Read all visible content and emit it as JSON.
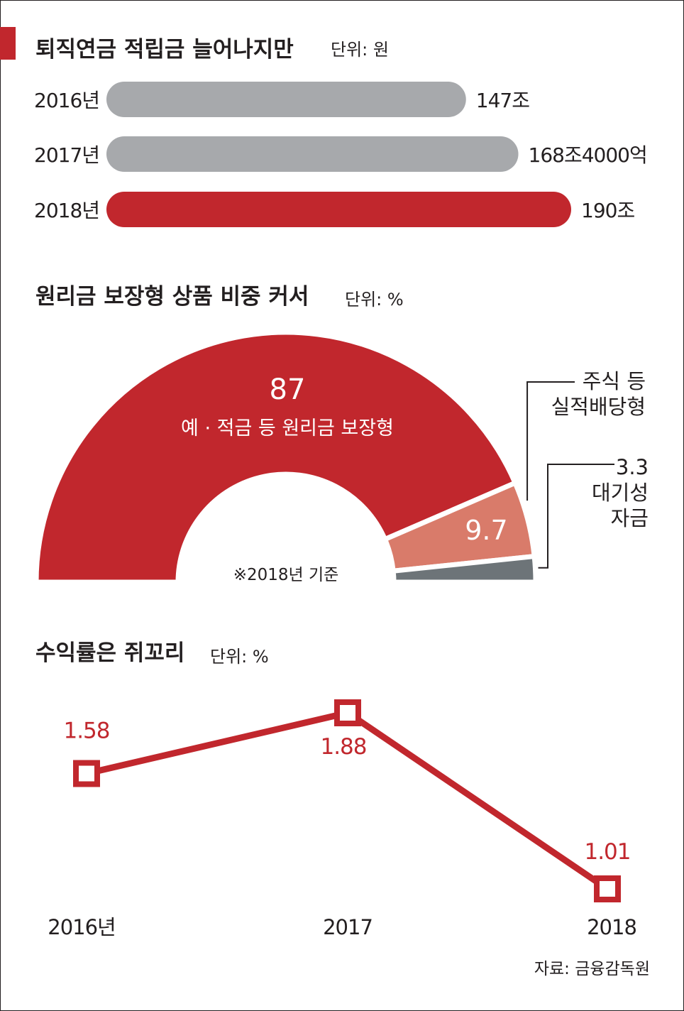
{
  "colors": {
    "accent": "#c1272d",
    "gray_bar": "#a7a9ac",
    "salmon": "#d97b6a",
    "slate": "#6d7478",
    "text": "#231f20"
  },
  "section1": {
    "title": "퇴직연금 적립금 늘어나지만",
    "unit": "단위: 원"
  },
  "section2": {
    "title": "원리금 보장형 상품 비중 커서",
    "unit": "단위: %",
    "footnote": "※2018년 기준"
  },
  "section3": {
    "title": "수익률은 쥐꼬리",
    "unit": "단위: %"
  },
  "source": "자료: 금융감독원",
  "chart_data": [
    {
      "type": "bar",
      "orientation": "horizontal",
      "title": "퇴직연금 적립금 늘어나지만",
      "unit": "원",
      "categories": [
        "2016년",
        "2017년",
        "2018년"
      ],
      "values": [
        147,
        168.4,
        190
      ],
      "value_unit": "조",
      "labels": [
        "147조",
        "168조4000억",
        "190조"
      ],
      "highlight": [
        false,
        false,
        true
      ]
    },
    {
      "type": "pie",
      "variant": "half-donut",
      "title": "원리금 보장형 상품 비중 커서",
      "unit": "%",
      "slices": [
        {
          "value": 87,
          "value_label": "87",
          "label": "예 · 적금 등 원리금 보장형",
          "color": "#c1272d"
        },
        {
          "value": 9.7,
          "value_label": "9.7",
          "label": "주식 등\n실적배당형",
          "label_lines": [
            "주식 등",
            "실적배당형"
          ],
          "color": "#d97b6a"
        },
        {
          "value": 3.3,
          "value_label": "3.3",
          "label": "대기성\n자금",
          "label_lines": [
            "대기성",
            "자금"
          ],
          "color": "#6d7478"
        }
      ],
      "note": "※2018년 기준"
    },
    {
      "type": "line",
      "title": "수익률은 쥐꼬리",
      "unit": "%",
      "categories": [
        "2016년",
        "2017",
        "2018"
      ],
      "values": [
        1.58,
        1.88,
        1.01
      ],
      "labels": [
        "1.58",
        "1.88",
        "1.01"
      ]
    }
  ]
}
